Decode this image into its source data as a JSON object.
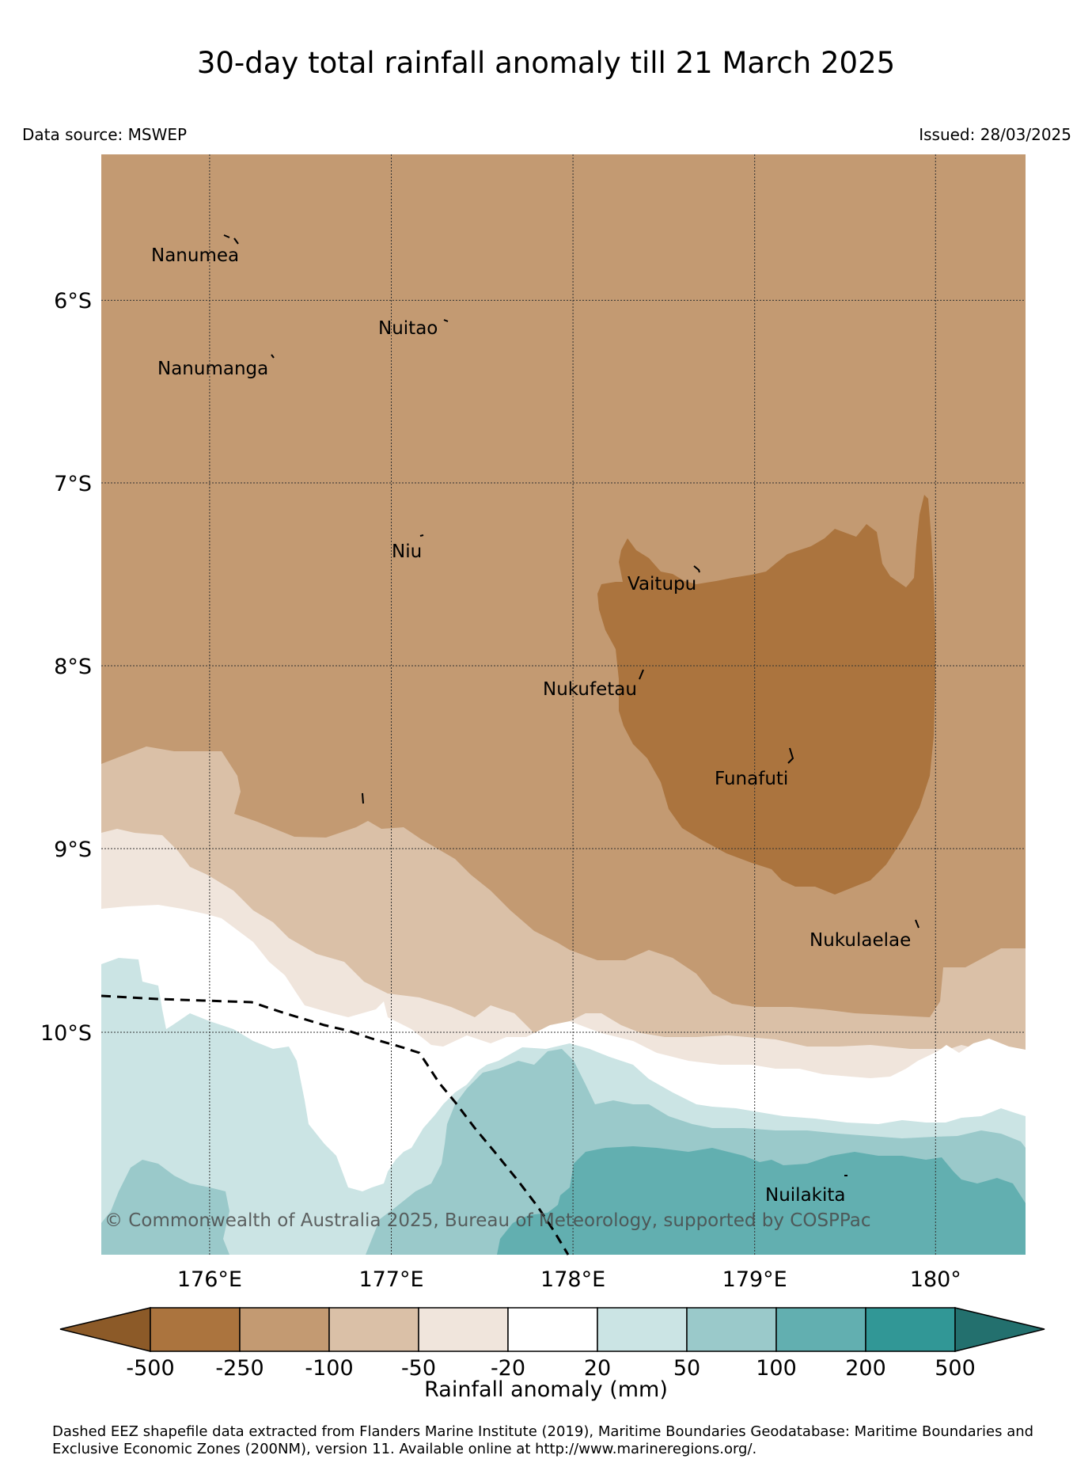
{
  "title": "30-day total rainfall anomaly till 21 March 2025",
  "data_source": "Data source: MSWEP",
  "issued": "Issued: 28/03/2025",
  "copyright": "© Commonwealth of Australia 2025, Bureau of Meteorology, supported by COSPPac",
  "axes": {
    "x_ticks": [
      "176°E",
      "177°E",
      "178°E",
      "179°E",
      "180°"
    ],
    "y_ticks": [
      "6°S",
      "7°S",
      "8°S",
      "9°S",
      "10°S"
    ],
    "lon_range": [
      175.45,
      180.5
    ],
    "lat_range": [
      -5.2,
      -11.2
    ],
    "grid": true
  },
  "islands": [
    {
      "name": "Nanumea",
      "lon": 176.13,
      "lat": -5.68
    },
    {
      "name": "Nuitao",
      "lon": 177.3,
      "lat": -6.12
    },
    {
      "name": "Nanumanga",
      "lon": 176.32,
      "lat": -6.3
    },
    {
      "name": "Niu",
      "lon": 177.33,
      "lat": -7.29
    },
    {
      "name": "Vaitupu",
      "lon": 178.68,
      "lat": -7.48
    },
    {
      "name": "Nukufetau",
      "lon": 178.38,
      "lat": -8.03
    },
    {
      "name": "Funafuti",
      "lon": 179.2,
      "lat": -8.52
    },
    {
      "name": "Nukulaelae",
      "lon": 179.83,
      "lat": -9.4
    },
    {
      "name": "Nuilakita",
      "lon": 179.5,
      "lat": -10.73
    }
  ],
  "colorbar": {
    "label": "Rainfall anomaly (mm)",
    "ticks": [
      "-500",
      "-250",
      "-100",
      "-50",
      "-20",
      "20",
      "50",
      "100",
      "200",
      "500"
    ],
    "colors": [
      "#8c5a28",
      "#ab743e",
      "#c39a72",
      "#dac0a7",
      "#f0e5dc",
      "#ffffff",
      "#cbe4e4",
      "#9ac9ca",
      "#62afb0",
      "#319796",
      "#23706e"
    ]
  },
  "footer": "Dashed EEZ shapefile data extracted from Flanders Marine Institute (2019), Maritime Boundaries Geodatabase: Maritime Boundaries and Exclusive Economic Zones (200NM), version 11. Available online at http://www.marineregions.org/."
}
